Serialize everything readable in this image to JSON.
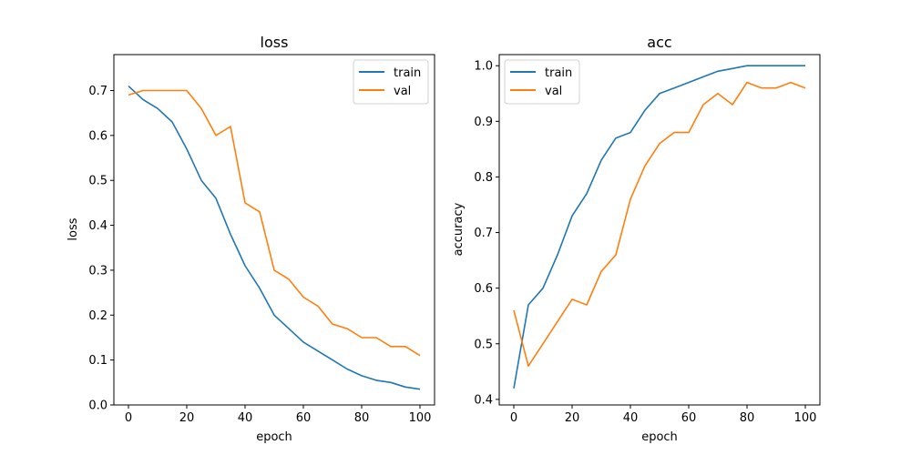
{
  "chart_data": [
    {
      "type": "line",
      "title": "loss",
      "xlabel": "epoch",
      "ylabel": "loss",
      "xlim": [
        -5,
        105
      ],
      "ylim": [
        0.0,
        0.78
      ],
      "xticks": [
        0,
        20,
        40,
        60,
        80,
        100
      ],
      "xtick_labels": [
        "0",
        "20",
        "40",
        "60",
        "80",
        "100"
      ],
      "yticks": [
        0.0,
        0.1,
        0.2,
        0.3,
        0.4,
        0.5,
        0.6,
        0.7
      ],
      "ytick_labels": [
        "0.0",
        "0.1",
        "0.2",
        "0.3",
        "0.4",
        "0.5",
        "0.6",
        "0.7"
      ],
      "legend": "top-right",
      "grid": false,
      "x": [
        0,
        5,
        10,
        15,
        20,
        25,
        30,
        35,
        40,
        45,
        50,
        55,
        60,
        65,
        70,
        75,
        80,
        85,
        90,
        95,
        100
      ],
      "series": [
        {
          "name": "train",
          "color": "#1f77b4",
          "values": [
            0.71,
            0.68,
            0.66,
            0.63,
            0.57,
            0.5,
            0.46,
            0.38,
            0.31,
            0.26,
            0.2,
            0.17,
            0.14,
            0.12,
            0.1,
            0.08,
            0.065,
            0.055,
            0.05,
            0.04,
            0.035
          ]
        },
        {
          "name": "val",
          "color": "#ff7f0e",
          "values": [
            0.69,
            0.7,
            0.7,
            0.7,
            0.7,
            0.66,
            0.6,
            0.62,
            0.45,
            0.43,
            0.3,
            0.28,
            0.24,
            0.22,
            0.18,
            0.17,
            0.15,
            0.15,
            0.13,
            0.13,
            0.11
          ]
        }
      ]
    },
    {
      "type": "line",
      "title": "acc",
      "xlabel": "epoch",
      "ylabel": "accuracy",
      "xlim": [
        -5,
        105
      ],
      "ylim": [
        0.39,
        1.02
      ],
      "xticks": [
        0,
        20,
        40,
        60,
        80,
        100
      ],
      "xtick_labels": [
        "0",
        "20",
        "40",
        "60",
        "80",
        "100"
      ],
      "yticks": [
        0.4,
        0.5,
        0.6,
        0.7,
        0.8,
        0.9,
        1.0
      ],
      "ytick_labels": [
        "0.4",
        "0.5",
        "0.6",
        "0.7",
        "0.8",
        "0.9",
        "1.0"
      ],
      "legend": "top-left",
      "grid": false,
      "x": [
        0,
        5,
        10,
        15,
        20,
        25,
        30,
        35,
        40,
        45,
        50,
        55,
        60,
        65,
        70,
        75,
        80,
        85,
        90,
        95,
        100
      ],
      "series": [
        {
          "name": "train",
          "color": "#1f77b4",
          "values": [
            0.42,
            0.57,
            0.6,
            0.66,
            0.73,
            0.77,
            0.83,
            0.87,
            0.88,
            0.92,
            0.95,
            0.96,
            0.97,
            0.98,
            0.99,
            0.995,
            1.0,
            1.0,
            1.0,
            1.0,
            1.0
          ]
        },
        {
          "name": "val",
          "color": "#ff7f0e",
          "values": [
            0.56,
            0.46,
            0.5,
            0.54,
            0.58,
            0.57,
            0.63,
            0.66,
            0.76,
            0.82,
            0.86,
            0.88,
            0.88,
            0.93,
            0.95,
            0.93,
            0.97,
            0.96,
            0.96,
            0.97,
            0.96
          ]
        }
      ]
    }
  ]
}
